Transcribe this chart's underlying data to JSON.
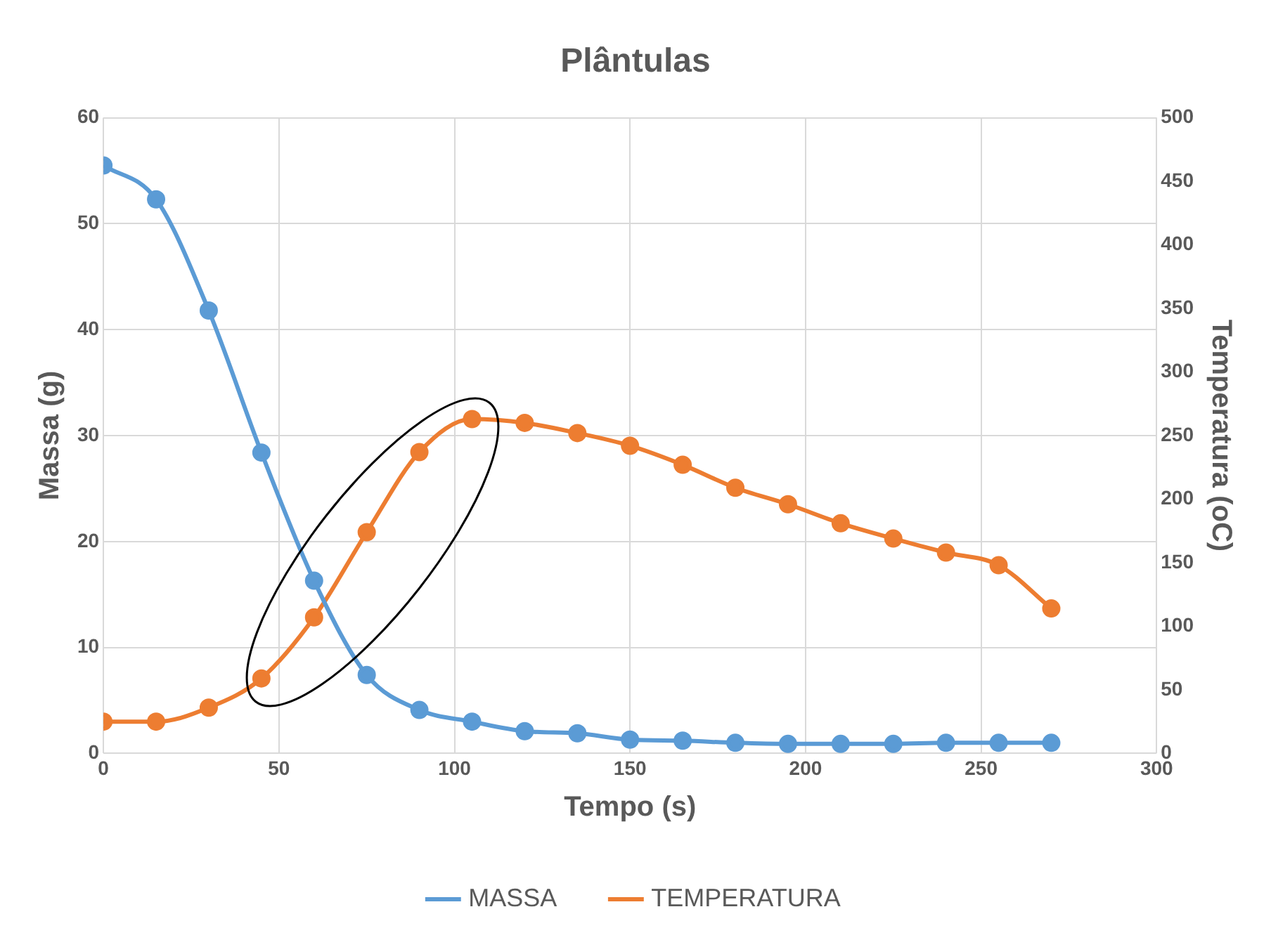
{
  "chart_data": {
    "type": "line",
    "title": "Plântulas",
    "xlabel": "Tempo (s)",
    "ylabel": "Massa (g)",
    "y2label": "Temperatura (oC)",
    "x": [
      0,
      15,
      30,
      45,
      60,
      75,
      90,
      105,
      120,
      135,
      150,
      165,
      180,
      195,
      210,
      225,
      240,
      255,
      270
    ],
    "series": [
      {
        "name": "MASSA",
        "color": "#5b9bd5",
        "values": [
          55.5,
          52.3,
          41.8,
          28.4,
          16.3,
          7.4,
          4.1,
          3.0,
          2.1,
          1.9,
          1.3,
          1.2,
          1.0,
          0.9,
          0.9,
          0.9,
          1.0,
          1.0,
          1.0
        ]
      },
      {
        "name": "TEMPERATURA",
        "color": "#ed7d31",
        "axis": "y2",
        "values": [
          25,
          25,
          36,
          59,
          107,
          174,
          237,
          263,
          260,
          252,
          242,
          227,
          209,
          196,
          181,
          169,
          158,
          148,
          114
        ]
      }
    ],
    "xlim": [
      0,
      300
    ],
    "xticks": [
      0,
      50,
      100,
      150,
      200,
      250,
      300
    ],
    "ylim": [
      0,
      60
    ],
    "yticks": [
      0,
      10,
      20,
      30,
      40,
      50,
      60
    ],
    "y2lim": [
      0,
      500
    ],
    "y2ticks": [
      0,
      50,
      100,
      150,
      200,
      250,
      300,
      350,
      400,
      450,
      500
    ],
    "grid": true,
    "legend": "bottom",
    "marker": "circle",
    "line_style": "solid"
  }
}
